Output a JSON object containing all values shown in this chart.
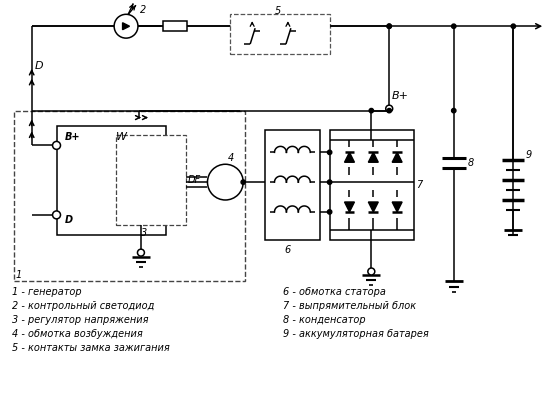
{
  "bg_color": "#ffffff",
  "line_color": "#000000",
  "legend_left": [
    "1 - генератор",
    "2 - контрольный светодиод",
    "3 - регулятор напряжения",
    "4 - обмотка возбуждения",
    "5 - контакты замка зажигания"
  ],
  "legend_right": [
    "6 - обмотка статора",
    "7 - выпрямительный блок",
    "8 - конденсатор",
    "9 - аккумуляторная батарея"
  ]
}
